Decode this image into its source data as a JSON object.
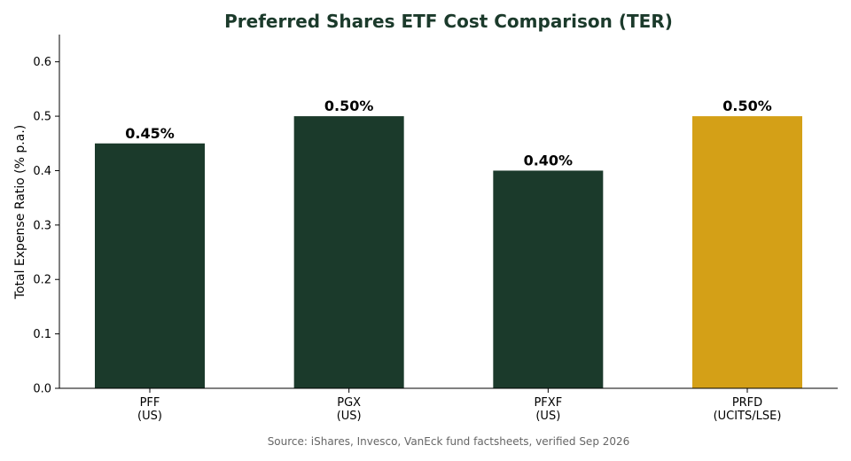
{
  "chart_data": {
    "type": "bar",
    "title": "Preferred Shares ETF Cost Comparison (TER)",
    "xlabel": "",
    "ylabel": "Total Expense Ratio (% p.a.)",
    "categories": [
      [
        "PFF",
        "(US)"
      ],
      [
        "PGX",
        "(US)"
      ],
      [
        "PFXF",
        "(US)"
      ],
      [
        "PRFD",
        "(UCITS/LSE)"
      ]
    ],
    "values": [
      0.45,
      0.5,
      0.4,
      0.5
    ],
    "value_labels": [
      "0.45%",
      "0.50%",
      "0.40%",
      "0.50%"
    ],
    "bar_colors": [
      "#1b3a2b",
      "#1b3a2b",
      "#1b3a2b",
      "#d4a017"
    ],
    "ylim": [
      0,
      0.65
    ],
    "yticks": [
      0.0,
      0.1,
      0.2,
      0.3,
      0.4,
      0.5,
      0.6
    ],
    "ytick_labels": [
      "0.0",
      "0.1",
      "0.2",
      "0.3",
      "0.4",
      "0.5",
      "0.6"
    ],
    "grid": false,
    "legend": "none"
  },
  "source_note": "Source: iShares, Invesco, VanEck fund factsheets, verified Sep 2026",
  "colors": {
    "title": "#1b3a2b",
    "us_bar": "#1b3a2b",
    "highlight_bar": "#d4a017",
    "source_text": "#666666"
  }
}
